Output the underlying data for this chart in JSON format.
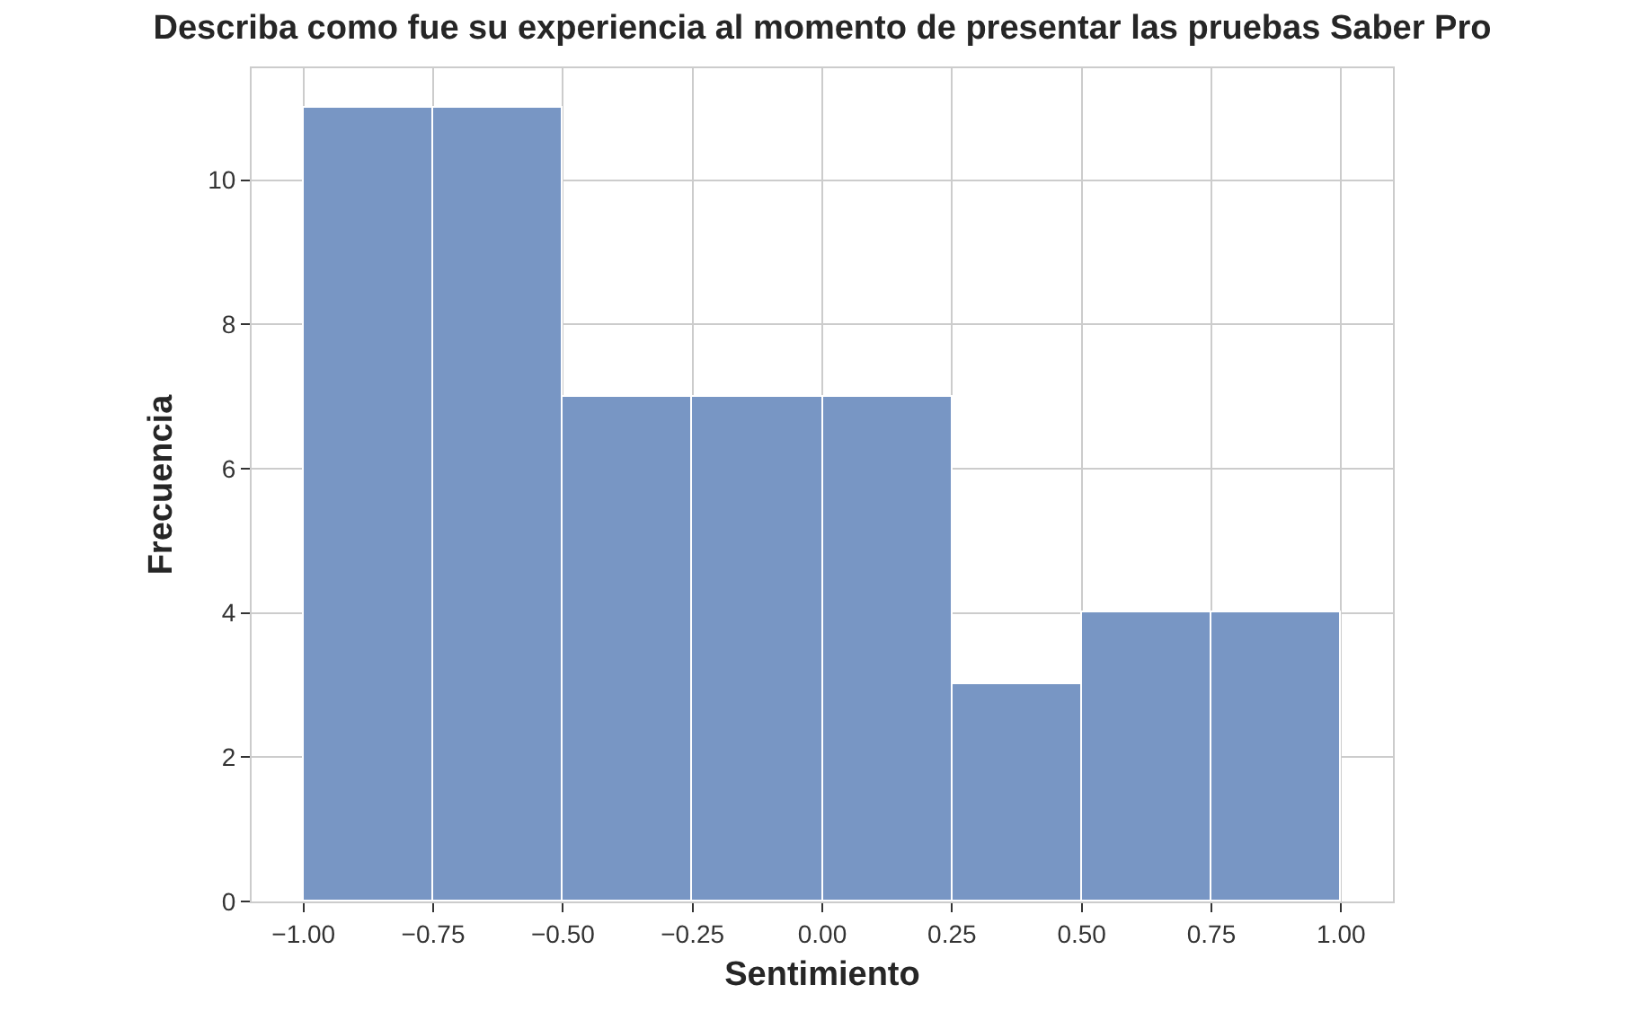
{
  "chart_data": {
    "type": "histogram",
    "title": "Describa como fue su experiencia al momento de presentar las pruebas Saber Pro",
    "xlabel": "Sentimiento",
    "ylabel": "Frecuencia",
    "bins": [
      -1,
      -0.75,
      -0.5,
      -0.25,
      0,
      0.25,
      0.5,
      0.75,
      1
    ],
    "values": [
      11,
      11,
      7,
      7,
      7,
      3,
      4,
      4
    ],
    "color": "#7896c4",
    "xlim": [
      -1.1,
      1.1
    ],
    "ylim": [
      0,
      11.55
    ],
    "xticks": [
      {
        "value": -1,
        "label": "−1.00"
      },
      {
        "value": -0.75,
        "label": "−0.75"
      },
      {
        "value": -0.5,
        "label": "−0.50"
      },
      {
        "value": -0.25,
        "label": "−0.25"
      },
      {
        "value": 0,
        "label": "0.00"
      },
      {
        "value": 0.25,
        "label": "0.25"
      },
      {
        "value": 0.5,
        "label": "0.50"
      },
      {
        "value": 0.75,
        "label": "0.75"
      },
      {
        "value": 1,
        "label": "1.00"
      }
    ],
    "yticks": [
      0,
      2,
      4,
      6,
      8,
      10
    ],
    "grid": true
  }
}
